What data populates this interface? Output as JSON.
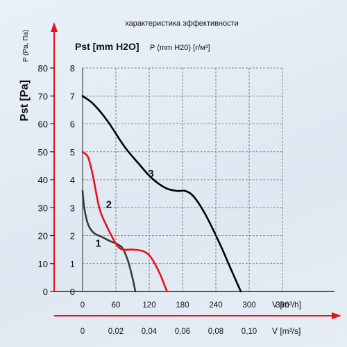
{
  "chart_data": {
    "type": "line",
    "title": "характеристика эффективности",
    "ylabel_pa": "Pst [Pa]",
    "ylabel_pa_small": "P (Pa, Па)",
    "ylabel_mm": "Pst [mm H2O]",
    "ylabel_mm_small": "P (mm H20) [г/м³]",
    "xlabel_m3h": "V [m³/h]",
    "xlabel_m3s": "V [m³/s]",
    "x_m3h_ticks": [
      "0",
      "60",
      "120",
      "180",
      "240",
      "300",
      "360"
    ],
    "x_m3s_ticks": [
      "0",
      "0,02",
      "0,04",
      "0,06",
      "0,08",
      "0,10"
    ],
    "y_pa_ticks": [
      "0",
      "10",
      "20",
      "30",
      "40",
      "50",
      "60",
      "70",
      "80"
    ],
    "y_mm_ticks": [
      "0",
      "1",
      "2",
      "3",
      "4",
      "5",
      "6",
      "7",
      "8"
    ],
    "xlim": [
      0,
      360
    ],
    "ylim_mm": [
      0,
      8
    ],
    "grid": true,
    "series": [
      {
        "name": "1",
        "color": "#3a3a3a",
        "points": [
          [
            0,
            3.6
          ],
          [
            3,
            3.0
          ],
          [
            10,
            2.4
          ],
          [
            20,
            2.1
          ],
          [
            35,
            1.95
          ],
          [
            50,
            1.8
          ],
          [
            62,
            1.7
          ],
          [
            72,
            1.55
          ],
          [
            80,
            1.2
          ],
          [
            86,
            0.8
          ],
          [
            92,
            0.3
          ],
          [
            95,
            0
          ]
        ]
      },
      {
        "name": "2",
        "color": "#e8101a",
        "points": [
          [
            0,
            5.0
          ],
          [
            10,
            4.8
          ],
          [
            18,
            4.2
          ],
          [
            30,
            3.0
          ],
          [
            42,
            2.4
          ],
          [
            52,
            2.0
          ],
          [
            62,
            1.65
          ],
          [
            72,
            1.5
          ],
          [
            90,
            1.5
          ],
          [
            108,
            1.45
          ],
          [
            120,
            1.3
          ],
          [
            130,
            1.0
          ],
          [
            140,
            0.6
          ],
          [
            148,
            0.2
          ],
          [
            152,
            0
          ]
        ]
      },
      {
        "name": "3",
        "color": "#000000",
        "points": [
          [
            0,
            7.0
          ],
          [
            20,
            6.7
          ],
          [
            45,
            6.1
          ],
          [
            75,
            5.2
          ],
          [
            100,
            4.6
          ],
          [
            125,
            4.05
          ],
          [
            150,
            3.7
          ],
          [
            170,
            3.6
          ],
          [
            185,
            3.6
          ],
          [
            200,
            3.4
          ],
          [
            220,
            2.8
          ],
          [
            245,
            1.8
          ],
          [
            265,
            0.9
          ],
          [
            285,
            0
          ]
        ]
      }
    ],
    "series_labels": [
      "1",
      "2",
      "3"
    ]
  }
}
